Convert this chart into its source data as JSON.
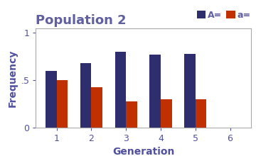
{
  "title": "Population 2",
  "xlabel": "Generation",
  "ylabel": "Frequency",
  "generations": [
    1,
    2,
    3,
    4,
    5
  ],
  "A_values": [
    0.6,
    0.68,
    0.8,
    0.77,
    0.78
  ],
  "a_values": [
    0.5,
    0.43,
    0.28,
    0.3,
    0.3
  ],
  "A_color": "#2e2e6e",
  "a_color": "#c03000",
  "bar_width": 0.32,
  "xlim": [
    0.4,
    6.6
  ],
  "ylim": [
    0,
    1.05
  ],
  "yticks": [
    0,
    0.5,
    1
  ],
  "ytick_labels": [
    "0",
    ".5",
    "1"
  ],
  "xticks": [
    1,
    2,
    3,
    4,
    5,
    6
  ],
  "title_color": "#6060a0",
  "axis_label_color": "#5050a0",
  "tick_color": "#5050a0",
  "legend_A_label": "A=",
  "legend_a_label": "a=",
  "title_fontsize": 13,
  "axis_label_fontsize": 10,
  "tick_fontsize": 9,
  "legend_fontsize": 9,
  "bg_color": "#ffffff"
}
